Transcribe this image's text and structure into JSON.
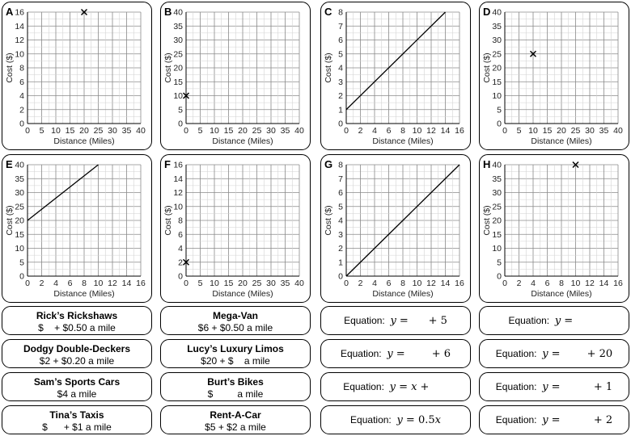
{
  "graphs": [
    {
      "letter": "A",
      "xticks": [
        "0",
        "5",
        "10",
        "15",
        "20",
        "25",
        "30",
        "35",
        "40"
      ],
      "yticks": [
        "0",
        "2",
        "4",
        "6",
        "8",
        "10",
        "12",
        "14",
        "16"
      ],
      "xmax": 40,
      "ymax": 16,
      "xlabel": "Distance (Miles)",
      "ylabel": "Cost ($)",
      "points": [
        [
          20,
          16
        ]
      ],
      "line": null
    },
    {
      "letter": "B",
      "xticks": [
        "0",
        "5",
        "10",
        "15",
        "20",
        "25",
        "30",
        "35",
        "40"
      ],
      "yticks": [
        "0",
        "5",
        "10",
        "15",
        "20",
        "25",
        "30",
        "35",
        "40"
      ],
      "xmax": 40,
      "ymax": 40,
      "xlabel": "Distance (Miles)",
      "ylabel": "Cost ($)",
      "points": [
        [
          0,
          10
        ]
      ],
      "line": null
    },
    {
      "letter": "C",
      "xticks": [
        "0",
        "2",
        "4",
        "6",
        "8",
        "10",
        "12",
        "14",
        "16"
      ],
      "yticks": [
        "0",
        "1",
        "2",
        "3",
        "4",
        "5",
        "6",
        "7",
        "8"
      ],
      "xmax": 16,
      "ymax": 8,
      "xlabel": "Distance (Miles)",
      "ylabel": "Cost ($)",
      "points": [],
      "line": [
        [
          0,
          1
        ],
        [
          14,
          8
        ]
      ]
    },
    {
      "letter": "D",
      "xticks": [
        "0",
        "5",
        "10",
        "15",
        "20",
        "25",
        "30",
        "35",
        "40"
      ],
      "yticks": [
        "0",
        "5",
        "10",
        "15",
        "20",
        "25",
        "30",
        "35",
        "40"
      ],
      "xmax": 40,
      "ymax": 40,
      "xlabel": "Distance (Miles)",
      "ylabel": "Cost ($)",
      "points": [
        [
          10,
          25
        ]
      ],
      "line": null
    },
    {
      "letter": "E",
      "xticks": [
        "0",
        "2",
        "4",
        "6",
        "8",
        "10",
        "12",
        "14",
        "16"
      ],
      "yticks": [
        "0",
        "5",
        "10",
        "15",
        "20",
        "25",
        "30",
        "35",
        "40"
      ],
      "xmax": 16,
      "ymax": 40,
      "xlabel": "Distance (Miles)",
      "ylabel": "Cost ($)",
      "points": [],
      "line": [
        [
          0,
          20
        ],
        [
          10,
          40
        ]
      ]
    },
    {
      "letter": "F",
      "xticks": [
        "0",
        "5",
        "10",
        "15",
        "20",
        "25",
        "30",
        "35",
        "40"
      ],
      "yticks": [
        "0",
        "2",
        "4",
        "6",
        "8",
        "10",
        "12",
        "14",
        "16"
      ],
      "xmax": 40,
      "ymax": 16,
      "xlabel": "Distance (Miles)",
      "ylabel": "Cost ($)",
      "points": [
        [
          0,
          2
        ]
      ],
      "line": null
    },
    {
      "letter": "G",
      "xticks": [
        "0",
        "2",
        "4",
        "6",
        "8",
        "10",
        "12",
        "14",
        "16"
      ],
      "yticks": [
        "0",
        "1",
        "2",
        "3",
        "4",
        "5",
        "6",
        "7",
        "8"
      ],
      "xmax": 16,
      "ymax": 8,
      "xlabel": "Distance (Miles)",
      "ylabel": "Cost ($)",
      "points": [],
      "line": [
        [
          0,
          0
        ],
        [
          16,
          8
        ]
      ]
    },
    {
      "letter": "H",
      "xticks": [
        "0",
        "2",
        "4",
        "6",
        "8",
        "10",
        "12",
        "14",
        "16"
      ],
      "yticks": [
        "0",
        "5",
        "10",
        "15",
        "20",
        "25",
        "30",
        "35",
        "40"
      ],
      "xmax": 16,
      "ymax": 40,
      "xlabel": "Distance (Miles)",
      "ylabel": "Cost ($)",
      "points": [
        [
          10,
          40
        ]
      ],
      "line": null
    }
  ],
  "companies": [
    {
      "name": "Rick’s Rickshaws",
      "pricing": "$    + $0.50 a mile"
    },
    {
      "name": "Mega-Van",
      "pricing": "$6 + $0.50 a mile"
    },
    {
      "name": "Dodgy Double-Deckers",
      "pricing": "$2 + $0.20 a mile"
    },
    {
      "name": "Lucy’s Luxury Limos",
      "pricing": "$20 + $    a mile"
    },
    {
      "name": "Sam’s Sports Cars",
      "pricing": "$4 a mile"
    },
    {
      "name": "Burt’s Bikes",
      "pricing": "$         a mile"
    },
    {
      "name": "Tina’s Taxis",
      "pricing": "$      + $1 a mile"
    },
    {
      "name": "Rent-A-Car",
      "pricing": "$5 + $2 a mile"
    }
  ],
  "equations": [
    {
      "label": "Equation:",
      "math": "𝑦 =      + 5"
    },
    {
      "label": "Equation:",
      "math": "𝑦 ="
    },
    {
      "label": "Equation:",
      "math": "𝑦 =        + 6"
    },
    {
      "label": "Equation:",
      "math": "𝑦 =        + 20"
    },
    {
      "label": "Equation:",
      "math": "𝑦 = 𝑥 +"
    },
    {
      "label": "Equation:",
      "math": "𝑦 =          + 1"
    },
    {
      "label": "Equation:",
      "math": "𝑦 = 0.5𝑥"
    },
    {
      "label": "Equation:",
      "math": "𝑦 =          + 2"
    }
  ]
}
